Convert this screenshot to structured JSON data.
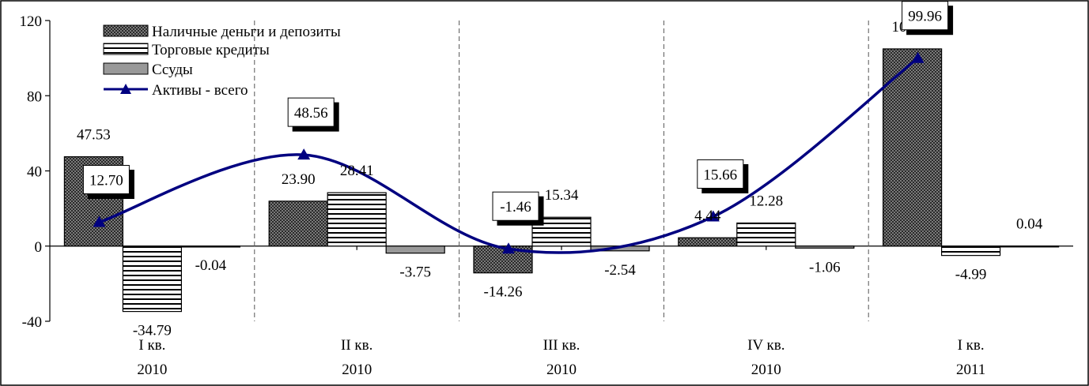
{
  "chart_data": {
    "type": "bar",
    "categories": [
      {
        "quarter": "I кв.",
        "year": "2010"
      },
      {
        "quarter": "II кв.",
        "year": "2010"
      },
      {
        "quarter": "III кв.",
        "year": "2010"
      },
      {
        "quarter": "IV кв.",
        "year": "2010"
      },
      {
        "quarter": "I кв.",
        "year": "2011"
      }
    ],
    "series": [
      {
        "name": "Наличные деньги и депозиты",
        "kind": "bar",
        "pattern": "dots",
        "color": "#404040",
        "values": [
          47.53,
          23.9,
          -14.26,
          4.44,
          104.91
        ],
        "labels": [
          "47.53",
          "23.90",
          "-14.26",
          "4.44",
          "104.91"
        ]
      },
      {
        "name": "Торговые кредиты",
        "kind": "bar",
        "pattern": "horizontal-stripes",
        "color": "#000000",
        "values": [
          -34.79,
          28.41,
          15.34,
          12.28,
          -4.99
        ],
        "labels": [
          "-34.79",
          "28.41",
          "15.34",
          "12.28",
          "-4.99"
        ]
      },
      {
        "name": "Ссуды",
        "kind": "bar",
        "pattern": "solid",
        "color": "#999999",
        "values": [
          -0.04,
          -3.75,
          -2.54,
          -1.06,
          0.04
        ],
        "labels": [
          "-0.04",
          "-3.75",
          "-2.54",
          "-1.06",
          "0.04"
        ]
      },
      {
        "name": "Активы - всего",
        "kind": "line",
        "marker": "triangle",
        "color": "#000080",
        "values": [
          12.7,
          48.56,
          -1.46,
          15.66,
          99.96
        ],
        "labels": [
          "12.70",
          "48.56",
          "-1.46",
          "15.66",
          "99.96"
        ]
      }
    ],
    "y_ticks": [
      "120",
      "80",
      "40",
      "0",
      "-40"
    ],
    "ylim": [
      -40,
      120
    ],
    "legend_position": "top-left",
    "grid": false
  }
}
